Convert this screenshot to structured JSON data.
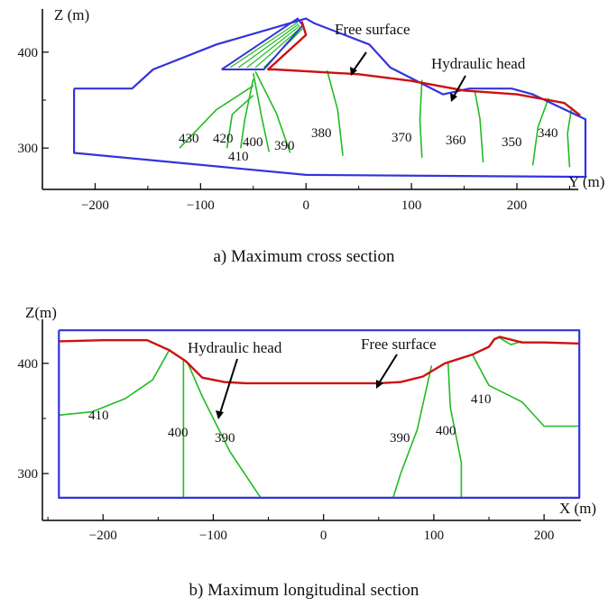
{
  "chart_data": [
    {
      "type": "line",
      "caption": "a) Maximum cross section",
      "xlabel": "Y (m)",
      "ylabel": "Z (m)",
      "xlim": [
        -250,
        265
      ],
      "ylim": [
        255,
        445
      ],
      "xticks": [
        -200,
        -100,
        0,
        100,
        200
      ],
      "xtick_labels": [
        "−200",
        "−100",
        "0",
        "100",
        "200"
      ],
      "yticks": [
        300,
        400
      ],
      "ytick_labels": [
        "300",
        "400"
      ],
      "colors": {
        "boundary": "#3333dd",
        "free_surface": "#cc1111",
        "contour": "#22bb22"
      },
      "boundary": {
        "x": [
          -220,
          -200,
          -165,
          -145,
          -145,
          -85,
          0,
          8,
          60,
          80,
          130,
          155,
          195,
          215,
          265,
          265,
          0,
          -220,
          -220
        ],
        "y": [
          362,
          362,
          362,
          382,
          382,
          408,
          435,
          430,
          408,
          384,
          356,
          362,
          362,
          356,
          330,
          270,
          272,
          295,
          362
        ]
      },
      "core": {
        "x": [
          -80,
          -8,
          -3,
          -40,
          -80
        ],
        "y": [
          382,
          435,
          428,
          382,
          382
        ]
      },
      "free_surface": {
        "x": [
          -4,
          -2,
          0,
          -36,
          -30,
          50,
          100,
          150,
          200,
          245,
          260
        ],
        "y": [
          432,
          425,
          418,
          382,
          382,
          377,
          370,
          360,
          356,
          347,
          334
        ]
      },
      "contours": [
        {
          "level": "430",
          "x": [
            -50,
            -85,
            -120
          ],
          "y": [
            365,
            340,
            300
          ]
        },
        {
          "level": "420",
          "x": [
            -50,
            -70,
            -75
          ],
          "y": [
            355,
            335,
            300
          ]
        },
        {
          "level": "410",
          "x": [
            -50,
            -58,
            -62
          ],
          "y": [
            372,
            330,
            300
          ]
        },
        {
          "level": "400",
          "x": [
            -50,
            -42,
            -35
          ],
          "y": [
            378,
            332,
            296
          ]
        },
        {
          "level": "390",
          "x": [
            -48,
            -28,
            -15
          ],
          "y": [
            380,
            336,
            295
          ]
        },
        {
          "level": "380",
          "x": [
            20,
            30,
            35
          ],
          "y": [
            381,
            340,
            292
          ]
        },
        {
          "level": "370",
          "x": [
            110,
            108,
            110
          ],
          "y": [
            371,
            330,
            290
          ]
        },
        {
          "level": "360",
          "x": [
            160,
            165,
            168
          ],
          "y": [
            360,
            330,
            285
          ]
        },
        {
          "level": "350",
          "x": [
            230,
            220,
            215
          ],
          "y": [
            352,
            322,
            282
          ]
        },
        {
          "level": "340",
          "x": [
            252,
            248,
            250
          ],
          "y": [
            343,
            315,
            280
          ]
        }
      ],
      "annotations": [
        {
          "text": "Free surface",
          "arrow_to": [
            50,
            377
          ]
        },
        {
          "text": "Hydraulic head",
          "arrow_to": [
            160,
            355
          ]
        }
      ]
    },
    {
      "type": "line",
      "caption": "b) Maximum longitudinal section",
      "xlabel": "X (m)",
      "ylabel": "Z(m)",
      "xlim": [
        -255,
        240
      ],
      "ylim": [
        255,
        440
      ],
      "xticks": [
        -200,
        -100,
        0,
        100,
        200
      ],
      "xtick_labels": [
        "−200",
        "−100",
        "0",
        "100",
        "200"
      ],
      "yticks": [
        300,
        400
      ],
      "ytick_labels": [
        "300",
        "400"
      ],
      "colors": {
        "boundary": "#3333dd",
        "free_surface": "#cc1111",
        "contour": "#22bb22"
      },
      "boundary": {
        "x": [
          -240,
          232,
          232,
          -240,
          -240
        ],
        "y": [
          430,
          430,
          278,
          278,
          430
        ]
      },
      "free_surface": {
        "x": [
          -240,
          -200,
          -160,
          -140,
          -125,
          -110,
          -90,
          -70,
          50,
          70,
          90,
          110,
          135,
          150,
          155,
          160,
          180,
          200,
          232
        ],
        "y": [
          420,
          421,
          421,
          412,
          402,
          387,
          383,
          382,
          382,
          383,
          388,
          400,
          408,
          415,
          422,
          424,
          419,
          419,
          418
        ]
      },
      "contours": [
        {
          "level": "410",
          "x": [
            -240,
            -210,
            -180,
            -155,
            -140
          ],
          "y": [
            353,
            356,
            368,
            385,
            412
          ]
        },
        {
          "level": "400",
          "x": [
            -127,
            -127,
            -127
          ],
          "y": [
            403,
            350,
            278
          ]
        },
        {
          "level": "390",
          "x": [
            -123,
            -110,
            -85,
            -57
          ],
          "y": [
            400,
            370,
            320,
            278
          ]
        },
        {
          "level": "390",
          "x": [
            98,
            85,
            70,
            63
          ],
          "y": [
            398,
            340,
            300,
            278
          ]
        },
        {
          "level": "400",
          "x": [
            113,
            115,
            125,
            125
          ],
          "y": [
            400,
            360,
            310,
            278
          ]
        },
        {
          "level": "410",
          "x": [
            135,
            150,
            180,
            200,
            232
          ],
          "y": [
            408,
            380,
            365,
            343,
            343
          ]
        },
        {
          "level": "410",
          "x": [
            160,
            170,
            180
          ],
          "y": [
            423,
            417,
            420
          ]
        }
      ],
      "annotations": [
        {
          "text": "Hydraulic head",
          "arrow_to": [
            -110,
            343
          ]
        },
        {
          "text": "Free surface",
          "arrow_to": [
            55,
            382
          ]
        }
      ]
    }
  ]
}
